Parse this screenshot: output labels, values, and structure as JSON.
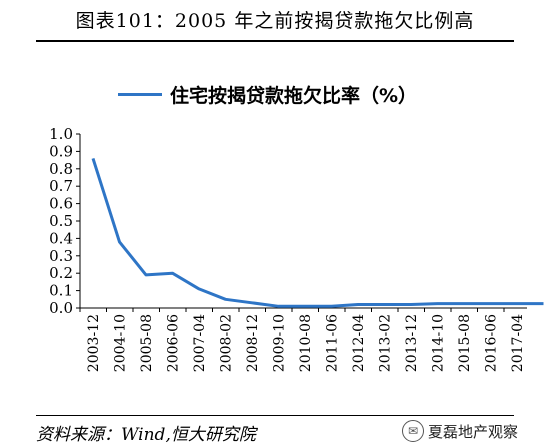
{
  "figure": {
    "title": "图表101：2005 年之前按揭贷款拖欠比例高",
    "source": "资料来源：Wind,恒大研究院",
    "watermark": "夏磊地产观察"
  },
  "colors": {
    "series": "#2e75c6",
    "axis": "#000000",
    "grid": "#d9d9d9"
  },
  "icons": {
    "watermark": "wechat-icon"
  },
  "chart_data": {
    "type": "line",
    "title": "",
    "xlabel": "",
    "ylabel": "",
    "ylim": [
      0,
      1.0
    ],
    "yticks": [
      "1.0",
      "0.9",
      "0.8",
      "0.7",
      "0.6",
      "0.5",
      "0.4",
      "0.3",
      "0.2",
      "0.1",
      "0.0"
    ],
    "categories": [
      "2003-12",
      "2004-10",
      "2005-08",
      "2006-06",
      "2007-04",
      "2008-02",
      "2008-12",
      "2009-10",
      "2010-08",
      "2011-06",
      "2012-04",
      "2013-02",
      "2013-12",
      "2014-10",
      "2015-08",
      "2016-06",
      "2017-04"
    ],
    "legend_position": "top",
    "grid": false,
    "series": [
      {
        "name": "住宅按揭贷款拖欠比率（%）",
        "x": [
          "2003-12",
          "2004-10",
          "2005-08",
          "2006-06",
          "2007-04",
          "2008-02",
          "2008-12",
          "2009-10",
          "2010-08",
          "2011-06",
          "2012-04",
          "2013-02",
          "2013-12",
          "2014-10",
          "2015-08",
          "2016-06",
          "2017-04",
          "2017-12"
        ],
        "values": [
          0.86,
          0.38,
          0.19,
          0.2,
          0.11,
          0.05,
          0.03,
          0.01,
          0.01,
          0.01,
          0.02,
          0.02,
          0.02,
          0.025,
          0.025,
          0.025,
          0.025,
          0.025
        ]
      }
    ]
  }
}
